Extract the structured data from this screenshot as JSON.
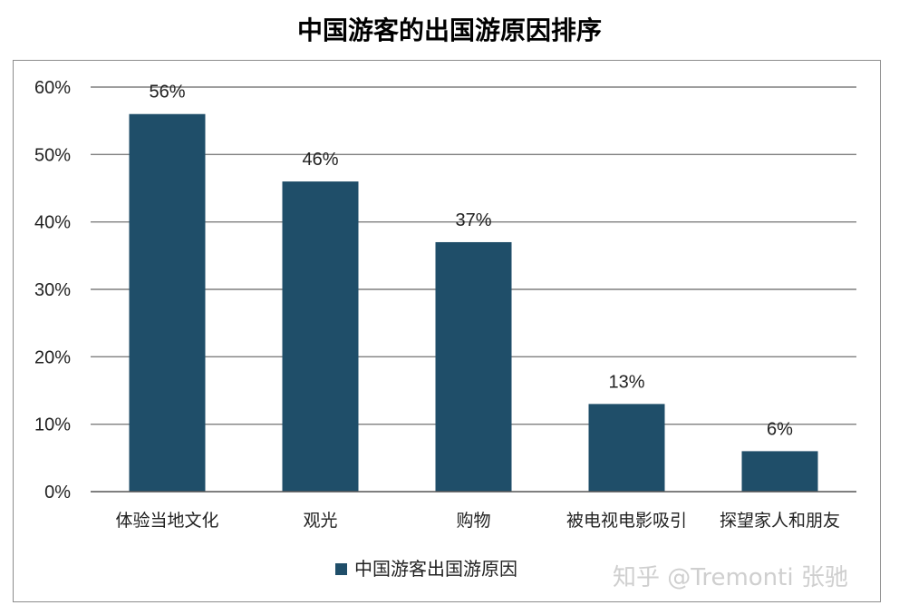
{
  "chart_data": {
    "type": "bar",
    "title": "中国游客的出国游原因排序",
    "categories": [
      "体验当地文化",
      "观光",
      "购物",
      "被电视电影吸引",
      "探望家人和朋友"
    ],
    "series": [
      {
        "name": "中国游客出国游原因",
        "values": [
          56,
          46,
          37,
          13,
          6
        ],
        "color": "#1f4e69"
      }
    ],
    "data_labels": [
      "56%",
      "46%",
      "37%",
      "13%",
      "6%"
    ],
    "ylim": [
      0,
      60
    ],
    "yticks": [
      0,
      10,
      20,
      30,
      40,
      50,
      60
    ],
    "ytick_labels": [
      "0%",
      "10%",
      "20%",
      "30%",
      "40%",
      "50%",
      "60%"
    ],
    "xlabel": "",
    "ylabel": "",
    "grid": true,
    "legend_position": "bottom"
  },
  "watermark": "知乎 @Tremonti 张驰"
}
